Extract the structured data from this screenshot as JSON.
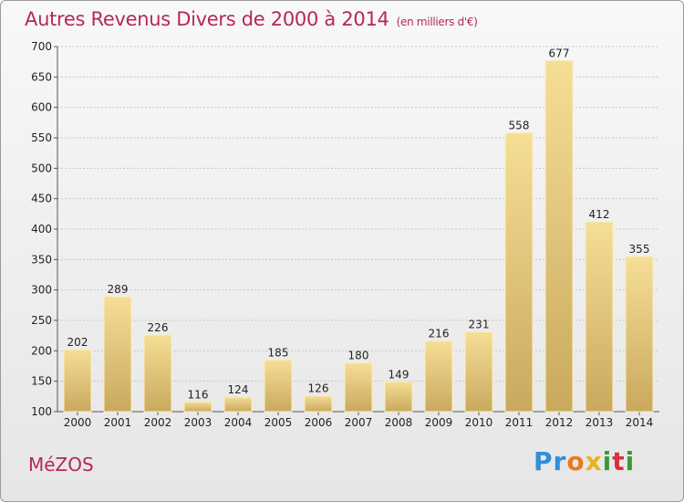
{
  "header": {
    "title": "Autres Revenus Divers de 2000 à 2014",
    "unit": "(en milliers d'€)"
  },
  "footer": {
    "commune": "MéZOS",
    "brand": {
      "letters": [
        "P",
        "r",
        "o",
        "x",
        "i",
        "t",
        "i"
      ],
      "colors": [
        "#2f8fd8",
        "#2f8fd8",
        "#e8791e",
        "#e8b41e",
        "#3a9a3a",
        "#d8333a",
        "#3a9a3a"
      ]
    }
  },
  "colors": {
    "bar_light": "#f6de96",
    "bar_dark": "#c9a95e",
    "text": "#222222",
    "grid": "#c8c8c8",
    "accent": "#b5285a"
  },
  "chart_data": {
    "type": "bar",
    "categories": [
      "2000",
      "2001",
      "2002",
      "2003",
      "2004",
      "2005",
      "2006",
      "2007",
      "2008",
      "2009",
      "2010",
      "2011",
      "2012",
      "2013",
      "2014"
    ],
    "values": [
      202,
      289,
      226,
      116,
      124,
      185,
      126,
      180,
      149,
      216,
      231,
      558,
      677,
      412,
      355
    ],
    "title": "Autres Revenus Divers de 2000 à 2014",
    "subtitle": "(en milliers d'€)",
    "ylim": [
      100,
      700
    ],
    "yticks": [
      100,
      150,
      200,
      250,
      300,
      350,
      400,
      450,
      500,
      550,
      600,
      650,
      700
    ],
    "grid": true,
    "data_labels": true
  }
}
